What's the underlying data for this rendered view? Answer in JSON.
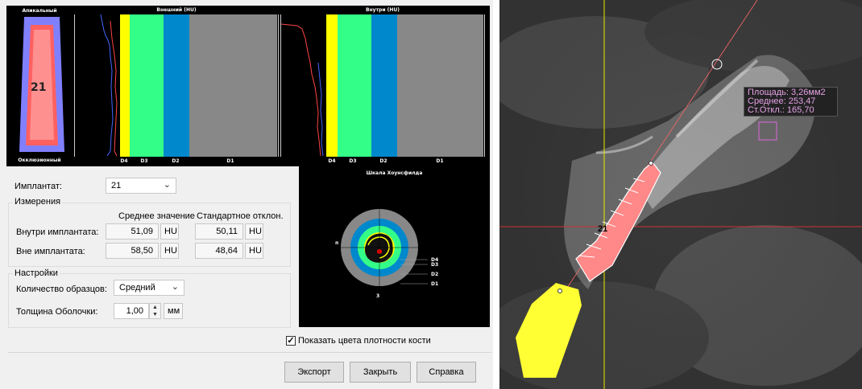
{
  "charts": {
    "apical_label": "Апикальный",
    "occlusal_label": "Окклюзионный",
    "tooth_number": "21",
    "outer_title": "Внешний (HU)",
    "inner_title": "Внутри (HU)",
    "density_labels": [
      "D4",
      "D3",
      "D2",
      "D1"
    ],
    "density_colors": [
      "#ffff00",
      "#33ff88",
      "#0088cc",
      "#888888"
    ],
    "misch_title": "Шкала Хоунсфилда",
    "misch_side_label": "п",
    "misch_bottom_label": "3",
    "misch_ring_labels": [
      "D4",
      "D3",
      "D2",
      "D1"
    ]
  },
  "implant": {
    "label": "Имплантат:",
    "value": "21"
  },
  "measure": {
    "title": "Измерения",
    "col_mean": "Среднее значение",
    "col_std": "Стандартное отклон.",
    "rows": [
      {
        "label": "Внутри имплантата:",
        "mean": "51,09",
        "std": "50,11",
        "unit": "HU"
      },
      {
        "label": "Вне имплантата:",
        "mean": "58,50",
        "std": "48,64",
        "unit": "HU"
      }
    ]
  },
  "settings": {
    "title": "Настройки",
    "samples_label": "Количество образцов:",
    "samples_value": "Средний",
    "shell_label": "Толщина Оболочки:",
    "shell_value": "1,00",
    "shell_unit": "мм"
  },
  "show_colors": {
    "label": "Показать цвета плотности кости",
    "checked": true
  },
  "buttons": {
    "export": "Экспорт",
    "close": "Закрыть",
    "help": "Справка"
  },
  "ct": {
    "implant_number": "21",
    "area": "Площадь: 3,26мм2",
    "mean": "Среднее: 253,47",
    "std": "Ст.Откл.: 165,70"
  }
}
